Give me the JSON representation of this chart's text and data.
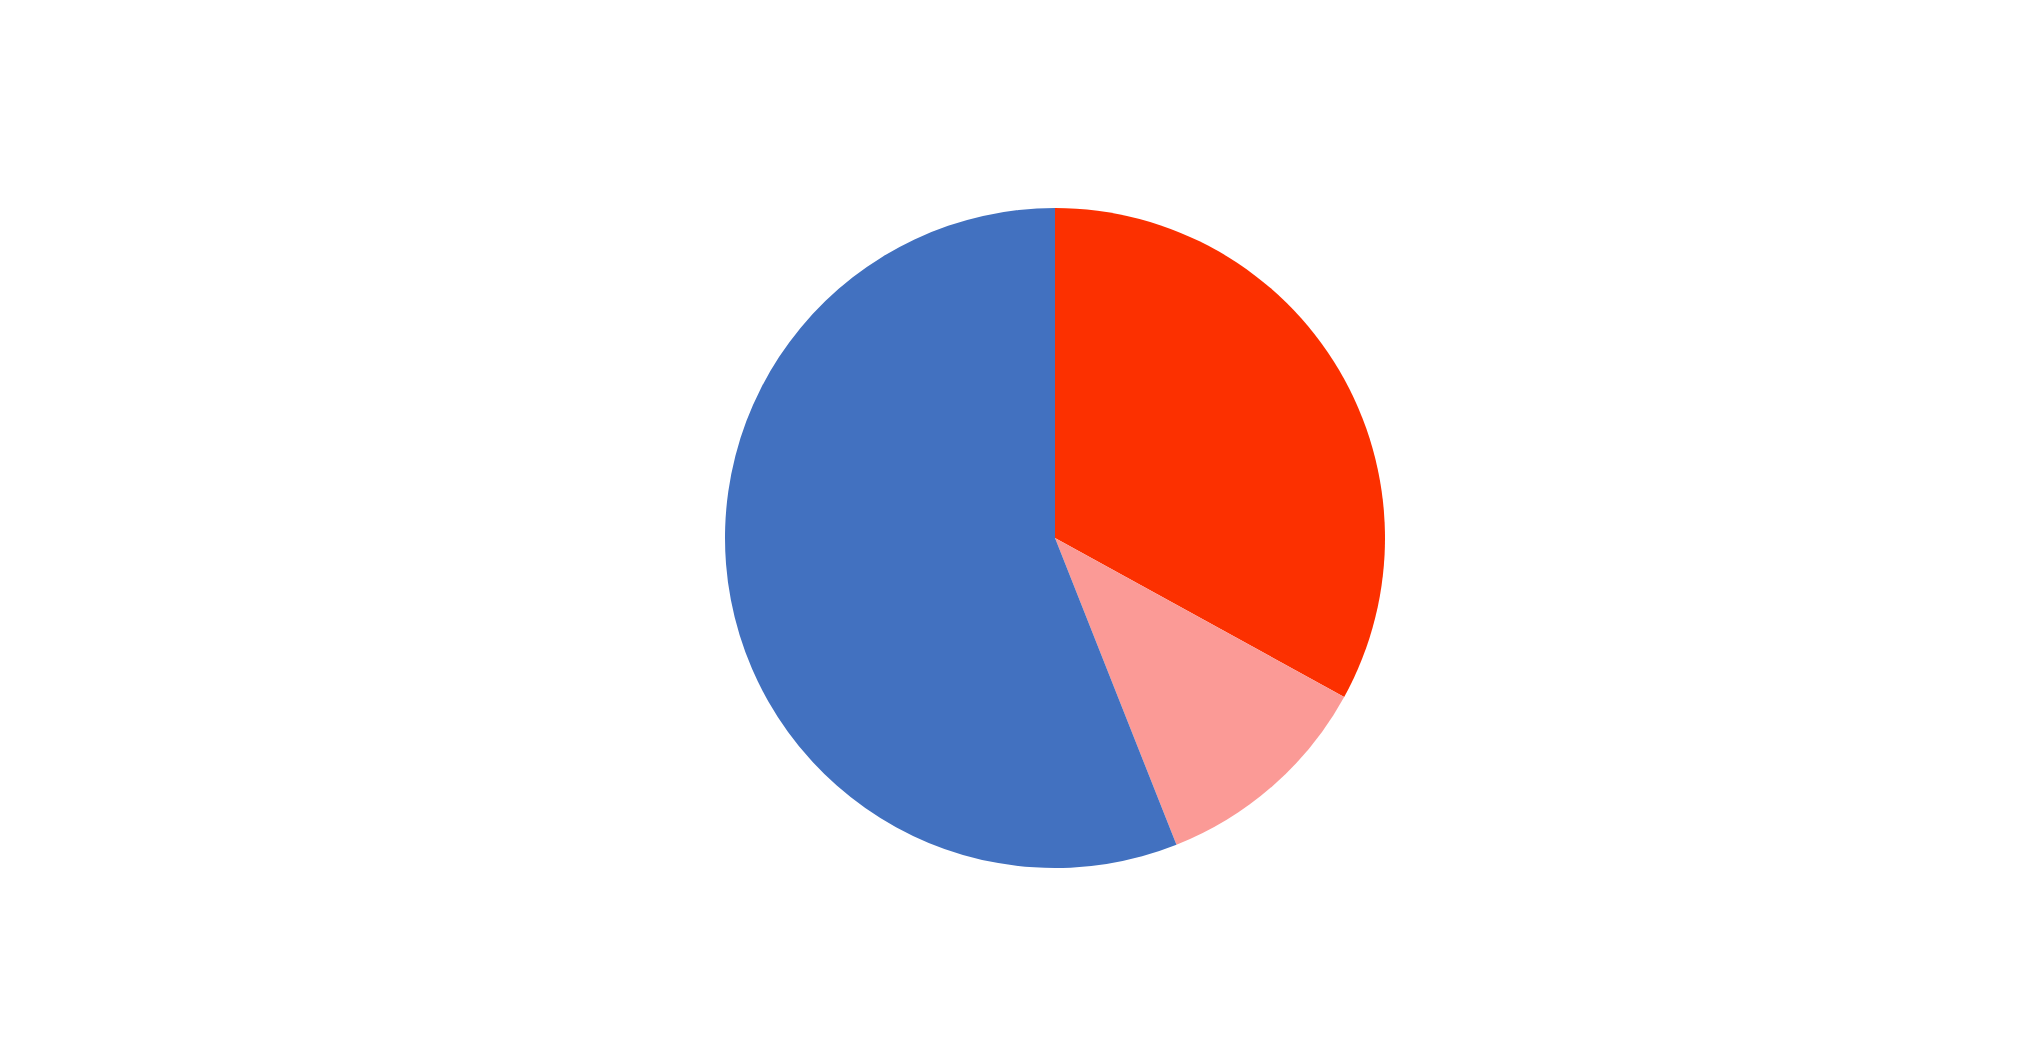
{
  "chart_data": {
    "type": "pie",
    "categories": [
      null,
      null,
      null
    ],
    "values": [
      33,
      11,
      56
    ],
    "colors": [
      "#fc3000",
      "#fb9a96",
      "#4271c0"
    ]
  }
}
